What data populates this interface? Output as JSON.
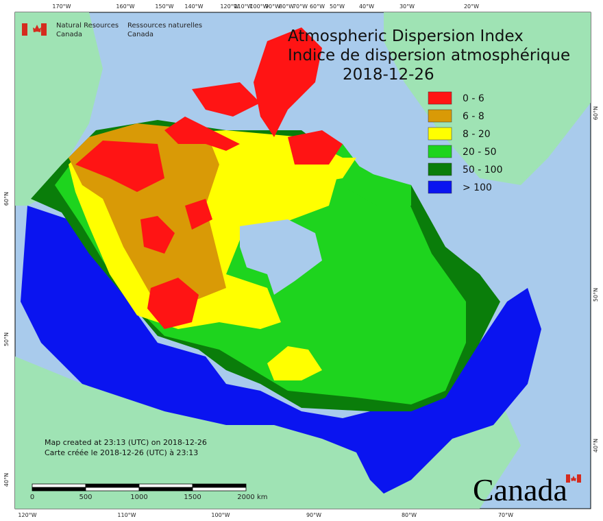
{
  "header": {
    "agency_en": [
      "Natural Resources",
      "Canada"
    ],
    "agency_fr": [
      "Ressources naturelles",
      "Canada"
    ]
  },
  "title": {
    "en": "Atmospheric Dispersion Index",
    "fr": "Indice de dispersion atmosphérique",
    "date": "2018-12-26"
  },
  "legend": [
    {
      "label": "0 - 6",
      "color": "#ff1414"
    },
    {
      "label": "6 - 8",
      "color": "#d99a06"
    },
    {
      "label": "8 - 20",
      "color": "#ffff00"
    },
    {
      "label": "20 - 50",
      "color": "#1ed41e"
    },
    {
      "label": "50 - 100",
      "color": "#0a7d0a"
    },
    {
      "label": "> 100",
      "color": "#0a14f0"
    }
  ],
  "graticule": {
    "top": [
      "170°W",
      "160°W",
      "150°W",
      "140°W",
      "120°W",
      "110°W",
      "100°W",
      "90°W",
      "80°W",
      "70°W",
      "60°W",
      "50°W",
      "40°W",
      "30°W",
      "20°W"
    ],
    "bottom": [
      "120°W",
      "110°W",
      "100°W",
      "90°W",
      "80°W",
      "70°W"
    ],
    "left": [
      "60°N",
      "50°N",
      "40°N"
    ],
    "right": [
      "60°N",
      "50°N",
      "40°N"
    ]
  },
  "scale_bar": {
    "ticks": [
      "0",
      "500",
      "1000",
      "1500",
      "2000"
    ],
    "unit": "km"
  },
  "notes": [
    "Map created at 23:13 (UTC) on 2018-12-26",
    "Carte créée le 2018-12-26 (UTC) à 23:13"
  ],
  "wordmark": "Canada"
}
